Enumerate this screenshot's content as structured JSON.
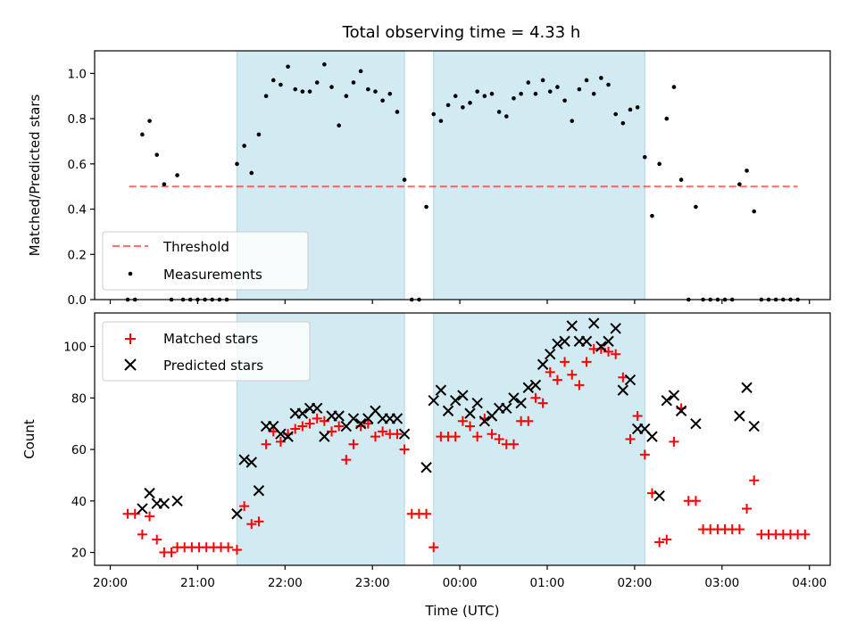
{
  "figure": {
    "title": "Total observing time = 4.33 h",
    "xlabel": "Time (UTC)"
  },
  "colors": {
    "shade": "#add8e6",
    "threshold": "#ff0000",
    "measurement": "#000000",
    "matched": "#ff0000",
    "predicted": "#000000"
  },
  "chart_data": [
    {
      "type": "scatter",
      "panel": "top",
      "ylabel": "Matched/Predicted stars",
      "ylim": [
        0,
        1.1
      ],
      "yticks": [
        0.0,
        0.2,
        0.4,
        0.6,
        0.8,
        1.0
      ],
      "ytick_labels": [
        "0.0",
        "0.2",
        "0.4",
        "0.6",
        "0.8",
        "1.0"
      ],
      "threshold": {
        "name": "Threshold",
        "value": 0.5,
        "x_start": "20:13",
        "x_end": "03:52"
      },
      "shaded_intervals": [
        [
          "21:27",
          "23:22"
        ],
        [
          "23:42",
          "02:07"
        ]
      ],
      "legend_location": "lower-left",
      "series": [
        {
          "name": "Measurements",
          "points": [
            [
              "20:12",
              0
            ],
            [
              "20:17",
              0
            ],
            [
              "20:22",
              0.73
            ],
            [
              "20:27",
              0.79
            ],
            [
              "20:32",
              0.64
            ],
            [
              "20:37",
              0.51
            ],
            [
              "20:42",
              0
            ],
            [
              "20:46",
              0.55
            ],
            [
              "20:50",
              0
            ],
            [
              "20:55",
              0
            ],
            [
              "21:00",
              0
            ],
            [
              "21:05",
              0
            ],
            [
              "21:10",
              0
            ],
            [
              "21:15",
              0
            ],
            [
              "21:20",
              0
            ],
            [
              "21:27",
              0.6
            ],
            [
              "21:32",
              0.68
            ],
            [
              "21:37",
              0.56
            ],
            [
              "21:42",
              0.73
            ],
            [
              "21:47",
              0.9
            ],
            [
              "21:52",
              0.97
            ],
            [
              "21:57",
              0.95
            ],
            [
              "22:02",
              1.03
            ],
            [
              "22:07",
              0.93
            ],
            [
              "22:12",
              0.92
            ],
            [
              "22:17",
              0.92
            ],
            [
              "22:22",
              0.96
            ],
            [
              "22:27",
              1.04
            ],
            [
              "22:32",
              0.94
            ],
            [
              "22:37",
              0.77
            ],
            [
              "22:42",
              0.9
            ],
            [
              "22:47",
              0.96
            ],
            [
              "22:52",
              1.01
            ],
            [
              "22:57",
              0.93
            ],
            [
              "23:02",
              0.92
            ],
            [
              "23:07",
              0.88
            ],
            [
              "23:12",
              0.91
            ],
            [
              "23:17",
              0.83
            ],
            [
              "23:22",
              0.53
            ],
            [
              "23:27",
              0
            ],
            [
              "23:32",
              0
            ],
            [
              "23:37",
              0.41
            ],
            [
              "23:42",
              0.82
            ],
            [
              "23:47",
              0.79
            ],
            [
              "23:52",
              0.86
            ],
            [
              "23:57",
              0.9
            ],
            [
              "00:02",
              0.85
            ],
            [
              "00:07",
              0.87
            ],
            [
              "00:12",
              0.92
            ],
            [
              "00:17",
              0.9
            ],
            [
              "00:22",
              0.91
            ],
            [
              "00:27",
              0.83
            ],
            [
              "00:32",
              0.81
            ],
            [
              "00:37",
              0.89
            ],
            [
              "00:42",
              0.91
            ],
            [
              "00:47",
              0.96
            ],
            [
              "00:52",
              0.91
            ],
            [
              "00:57",
              0.97
            ],
            [
              "01:02",
              0.92
            ],
            [
              "01:07",
              0.94
            ],
            [
              "01:12",
              0.88
            ],
            [
              "01:17",
              0.79
            ],
            [
              "01:22",
              0.93
            ],
            [
              "01:27",
              0.97
            ],
            [
              "01:32",
              0.91
            ],
            [
              "01:37",
              0.98
            ],
            [
              "01:42",
              0.95
            ],
            [
              "01:47",
              0.82
            ],
            [
              "01:52",
              0.78
            ],
            [
              "01:57",
              0.84
            ],
            [
              "02:02",
              0.85
            ],
            [
              "02:07",
              0.63
            ],
            [
              "02:12",
              0.37
            ],
            [
              "02:17",
              0.6
            ],
            [
              "02:22",
              0.8
            ],
            [
              "02:27",
              0.94
            ],
            [
              "02:32",
              0.53
            ],
            [
              "02:37",
              0
            ],
            [
              "02:42",
              0.41
            ],
            [
              "02:47",
              0
            ],
            [
              "02:52",
              0
            ],
            [
              "02:57",
              0
            ],
            [
              "03:02",
              0
            ],
            [
              "03:07",
              0
            ],
            [
              "03:12",
              0.51
            ],
            [
              "03:17",
              0.57
            ],
            [
              "03:22",
              0.39
            ],
            [
              "03:27",
              0
            ],
            [
              "03:32",
              0
            ],
            [
              "03:37",
              0
            ],
            [
              "03:42",
              0
            ],
            [
              "03:47",
              0
            ],
            [
              "03:52",
              0
            ]
          ]
        }
      ]
    },
    {
      "type": "scatter",
      "panel": "bottom",
      "ylabel": "Count",
      "ylim": [
        15,
        113
      ],
      "yticks": [
        20,
        40,
        60,
        80,
        100
      ],
      "ytick_labels": [
        "20",
        "40",
        "60",
        "80",
        "100"
      ],
      "xlim": [
        "19:52",
        "04:12"
      ],
      "xticks": [
        "20:00",
        "21:00",
        "22:00",
        "23:00",
        "00:00",
        "01:00",
        "02:00",
        "03:00",
        "04:00"
      ],
      "shaded_intervals": [
        [
          "21:27",
          "23:22"
        ],
        [
          "23:42",
          "02:07"
        ]
      ],
      "legend_location": "upper-left",
      "series": [
        {
          "name": "Matched stars",
          "marker": "plus",
          "points": [
            [
              "20:12",
              35
            ],
            [
              "20:17",
              35
            ],
            [
              "20:22",
              27
            ],
            [
              "20:27",
              34
            ],
            [
              "20:32",
              25
            ],
            [
              "20:37",
              20
            ],
            [
              "20:42",
              20
            ],
            [
              "20:46",
              22
            ],
            [
              "20:51",
              22
            ],
            [
              "20:56",
              22
            ],
            [
              "21:01",
              22
            ],
            [
              "21:06",
              22
            ],
            [
              "21:11",
              22
            ],
            [
              "21:16",
              22
            ],
            [
              "21:21",
              22
            ],
            [
              "21:27",
              21
            ],
            [
              "21:32",
              38
            ],
            [
              "21:37",
              31
            ],
            [
              "21:42",
              32
            ],
            [
              "21:47",
              62
            ],
            [
              "21:52",
              67
            ],
            [
              "21:57",
              63
            ],
            [
              "22:02",
              66
            ],
            [
              "22:07",
              68
            ],
            [
              "22:12",
              69
            ],
            [
              "22:17",
              70
            ],
            [
              "22:22",
              72
            ],
            [
              "22:27",
              71
            ],
            [
              "22:32",
              67
            ],
            [
              "22:37",
              69
            ],
            [
              "22:42",
              56
            ],
            [
              "22:47",
              62
            ],
            [
              "22:52",
              69
            ],
            [
              "22:57",
              70
            ],
            [
              "23:02",
              65
            ],
            [
              "23:07",
              67
            ],
            [
              "23:12",
              66
            ],
            [
              "23:17",
              66
            ],
            [
              "23:22",
              60
            ],
            [
              "23:27",
              35
            ],
            [
              "23:32",
              35
            ],
            [
              "23:37",
              35
            ],
            [
              "23:42",
              22
            ],
            [
              "23:47",
              65
            ],
            [
              "23:52",
              65
            ],
            [
              "23:57",
              65
            ],
            [
              "00:02",
              71
            ],
            [
              "00:07",
              69
            ],
            [
              "00:12",
              65
            ],
            [
              "00:17",
              72
            ],
            [
              "00:22",
              66
            ],
            [
              "00:27",
              64
            ],
            [
              "00:32",
              62
            ],
            [
              "00:37",
              62
            ],
            [
              "00:42",
              71
            ],
            [
              "00:47",
              71
            ],
            [
              "00:52",
              80
            ],
            [
              "00:57",
              78
            ],
            [
              "01:02",
              90
            ],
            [
              "01:07",
              87
            ],
            [
              "01:12",
              94
            ],
            [
              "01:17",
              89
            ],
            [
              "01:22",
              85
            ],
            [
              "01:27",
              94
            ],
            [
              "01:32",
              99
            ],
            [
              "01:37",
              99
            ],
            [
              "01:42",
              98
            ],
            [
              "01:47",
              97
            ],
            [
              "01:52",
              88
            ],
            [
              "01:57",
              64
            ],
            [
              "02:02",
              73
            ],
            [
              "02:07",
              58
            ],
            [
              "02:12",
              43
            ],
            [
              "02:17",
              24
            ],
            [
              "02:22",
              25
            ],
            [
              "02:27",
              63
            ],
            [
              "02:32",
              76
            ],
            [
              "02:37",
              40
            ],
            [
              "02:42",
              40
            ],
            [
              "02:47",
              29
            ],
            [
              "02:52",
              29
            ],
            [
              "02:57",
              29
            ],
            [
              "03:02",
              29
            ],
            [
              "03:07",
              29
            ],
            [
              "03:12",
              29
            ],
            [
              "03:17",
              37
            ],
            [
              "03:22",
              48
            ],
            [
              "03:27",
              27
            ],
            [
              "03:32",
              27
            ],
            [
              "03:37",
              27
            ],
            [
              "03:42",
              27
            ],
            [
              "03:47",
              27
            ],
            [
              "03:52",
              27
            ],
            [
              "03:57",
              27
            ]
          ]
        },
        {
          "name": "Predicted stars",
          "marker": "x",
          "points": [
            [
              "20:22",
              37
            ],
            [
              "20:27",
              43
            ],
            [
              "20:32",
              39
            ],
            [
              "20:37",
              39
            ],
            [
              "20:46",
              40
            ],
            [
              "21:27",
              35
            ],
            [
              "21:32",
              56
            ],
            [
              "21:37",
              55
            ],
            [
              "21:42",
              44
            ],
            [
              "21:47",
              69
            ],
            [
              "21:52",
              69
            ],
            [
              "21:57",
              66
            ],
            [
              "22:02",
              65
            ],
            [
              "22:07",
              74
            ],
            [
              "22:12",
              74
            ],
            [
              "22:17",
              76
            ],
            [
              "22:22",
              76
            ],
            [
              "22:27",
              65
            ],
            [
              "22:32",
              73
            ],
            [
              "22:37",
              73
            ],
            [
              "22:42",
              69
            ],
            [
              "22:47",
              72
            ],
            [
              "22:52",
              70
            ],
            [
              "22:57",
              72
            ],
            [
              "23:02",
              75
            ],
            [
              "23:07",
              72
            ],
            [
              "23:12",
              72
            ],
            [
              "23:17",
              72
            ],
            [
              "23:22",
              66
            ],
            [
              "23:37",
              53
            ],
            [
              "23:42",
              79
            ],
            [
              "23:47",
              83
            ],
            [
              "23:52",
              75
            ],
            [
              "23:57",
              79
            ],
            [
              "00:02",
              81
            ],
            [
              "00:07",
              74
            ],
            [
              "00:12",
              78
            ],
            [
              "00:17",
              71
            ],
            [
              "00:22",
              73
            ],
            [
              "00:27",
              76
            ],
            [
              "00:32",
              76
            ],
            [
              "00:37",
              80
            ],
            [
              "00:42",
              78
            ],
            [
              "00:47",
              84
            ],
            [
              "00:52",
              85
            ],
            [
              "00:57",
              93
            ],
            [
              "01:02",
              97
            ],
            [
              "01:07",
              101
            ],
            [
              "01:12",
              102
            ],
            [
              "01:17",
              108
            ],
            [
              "01:22",
              102
            ],
            [
              "01:27",
              102
            ],
            [
              "01:32",
              109
            ],
            [
              "01:37",
              100
            ],
            [
              "01:42",
              102
            ],
            [
              "01:47",
              107
            ],
            [
              "01:52",
              83
            ],
            [
              "01:57",
              87
            ],
            [
              "02:02",
              68
            ],
            [
              "02:07",
              68
            ],
            [
              "02:12",
              65
            ],
            [
              "02:17",
              42
            ],
            [
              "02:22",
              79
            ],
            [
              "02:27",
              81
            ],
            [
              "02:32",
              75
            ],
            [
              "02:42",
              70
            ],
            [
              "03:12",
              73
            ],
            [
              "03:17",
              84
            ],
            [
              "03:22",
              69
            ]
          ]
        }
      ]
    }
  ]
}
